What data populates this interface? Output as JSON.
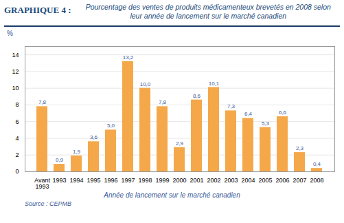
{
  "chart_data": {
    "type": "bar",
    "title": "GRAPHIQUE 4 :",
    "subtitle": "Pourcentage des ventes de produits médicamenteux brevetés en 2008 selon\nleur année de lancement sur le marché canadien",
    "categories": [
      "Avant\n1993",
      "1993",
      "1994",
      "1995",
      "1996",
      "1997",
      "1998",
      "1999",
      "2000",
      "2001",
      "2002",
      "2003",
      "2004",
      "2005",
      "2006",
      "2007",
      "2008"
    ],
    "values": [
      7.8,
      0.9,
      1.9,
      3.6,
      5.0,
      13.2,
      10.0,
      7.8,
      2.9,
      8.6,
      10.1,
      7.3,
      6.4,
      5.3,
      6.6,
      2.3,
      0.4
    ],
    "value_labels": [
      "7,8",
      "0,9",
      "1,9",
      "3,6",
      "5,0",
      "13,2",
      "10,0",
      "7,8",
      "2,9",
      "8,6",
      "10,1",
      "7,3",
      "6,4",
      "5,3",
      "6,6",
      "2,3",
      "0,4"
    ],
    "data_labels": true,
    "color": "#F5A84A",
    "ylabel": "%",
    "xlabel": "Année de lancement sur le marché canadien",
    "caption": "Source : CEPMB",
    "ylim": [
      0,
      15
    ],
    "yticks": [
      0,
      2,
      4,
      6,
      8,
      10,
      12,
      14
    ],
    "grid": true
  }
}
